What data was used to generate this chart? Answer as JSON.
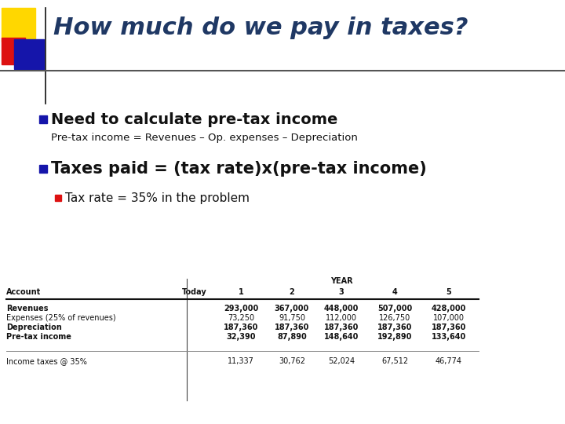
{
  "title": "How much do we pay in taxes?",
  "title_color": "#1F3864",
  "title_fontsize": 22,
  "bg_color": "#FFFFFF",
  "bullet1_text": "Need to calculate pre-tax income",
  "bullet1_sub": "Pre-tax income = Revenues – Op. expenses – Depreciation",
  "bullet2_text": "Taxes paid = (tax rate)x(pre-tax income)",
  "bullet2_sub": "Tax rate = 35% in the problem",
  "table_headers": [
    "Account",
    "Today",
    "1",
    "2",
    "3",
    "4",
    "5"
  ],
  "table_year_label": "YEAR",
  "table_rows": [
    [
      "Revenues",
      "",
      "293,000",
      "367,000",
      "448,000",
      "507,000",
      "428,000"
    ],
    [
      "Expenses (25% of revenues)",
      "",
      "73,250",
      "91,750",
      "112,000",
      "126,750",
      "107,000"
    ],
    [
      "Depreciation",
      "",
      "187,360",
      "187,360",
      "187,360",
      "187,360",
      "187,360"
    ],
    [
      "Pre-tax income",
      "",
      "32,390",
      "87,890",
      "148,640",
      "192,890",
      "133,640"
    ]
  ],
  "table_separator_row": [
    "Income taxes @ 35%",
    "",
    "11,337",
    "30,762",
    "52,024",
    "67,512",
    "46,774"
  ],
  "accent_yellow": "#FFD700",
  "accent_red": "#DD1111",
  "accent_blue": "#1515AA",
  "bullet_blue": "#1515AA",
  "bullet_red": "#DD1111",
  "line_color": "#333333",
  "sub_color": "#111111",
  "table_font_size": 7.0,
  "bullet1_fontsize": 14,
  "bullet2_fontsize": 15,
  "bullet_sub_fontsize": 9.5,
  "bullet2sub_fontsize": 11
}
